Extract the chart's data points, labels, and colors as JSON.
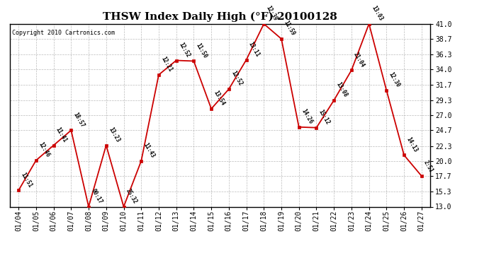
{
  "title": "THSW Index Daily High (°F) 20100128",
  "copyright": "Copyright 2010 Cartronics.com",
  "x_labels": [
    "01/04",
    "01/05",
    "01/06",
    "01/07",
    "01/08",
    "01/09",
    "01/10",
    "01/11",
    "01/12",
    "01/13",
    "01/14",
    "01/15",
    "01/16",
    "01/17",
    "01/18",
    "01/19",
    "01/20",
    "01/21",
    "01/22",
    "01/23",
    "01/24",
    "01/25",
    "01/26",
    "01/27"
  ],
  "y_values": [
    15.5,
    20.1,
    22.4,
    24.7,
    13.0,
    22.4,
    13.0,
    20.0,
    33.2,
    35.4,
    35.3,
    28.0,
    31.0,
    35.5,
    41.0,
    38.7,
    25.2,
    25.1,
    29.3,
    33.9,
    41.0,
    30.8,
    20.9,
    17.7
  ],
  "time_labels": [
    "11:51",
    "12:46",
    "11:41",
    "18:57",
    "00:17",
    "13:23",
    "25:32",
    "11:43",
    "12:21",
    "12:52",
    "11:50",
    "13:54",
    "12:52",
    "13:11",
    "12:39",
    "11:59",
    "14:26",
    "15:12",
    "13:08",
    "21:04",
    "13:03",
    "12:30",
    "14:13",
    "2:51"
  ],
  "line_color": "#cc0000",
  "marker_color": "#cc0000",
  "background_color": "#ffffff",
  "grid_color": "#aaaaaa",
  "ylim_min": 13.0,
  "ylim_max": 41.0,
  "yticks": [
    13.0,
    15.3,
    17.7,
    20.0,
    22.3,
    24.7,
    27.0,
    29.3,
    31.7,
    34.0,
    36.3,
    38.7,
    41.0
  ],
  "title_fontsize": 11,
  "label_fontsize": 5.5,
  "tick_fontsize": 7,
  "copyright_fontsize": 6
}
